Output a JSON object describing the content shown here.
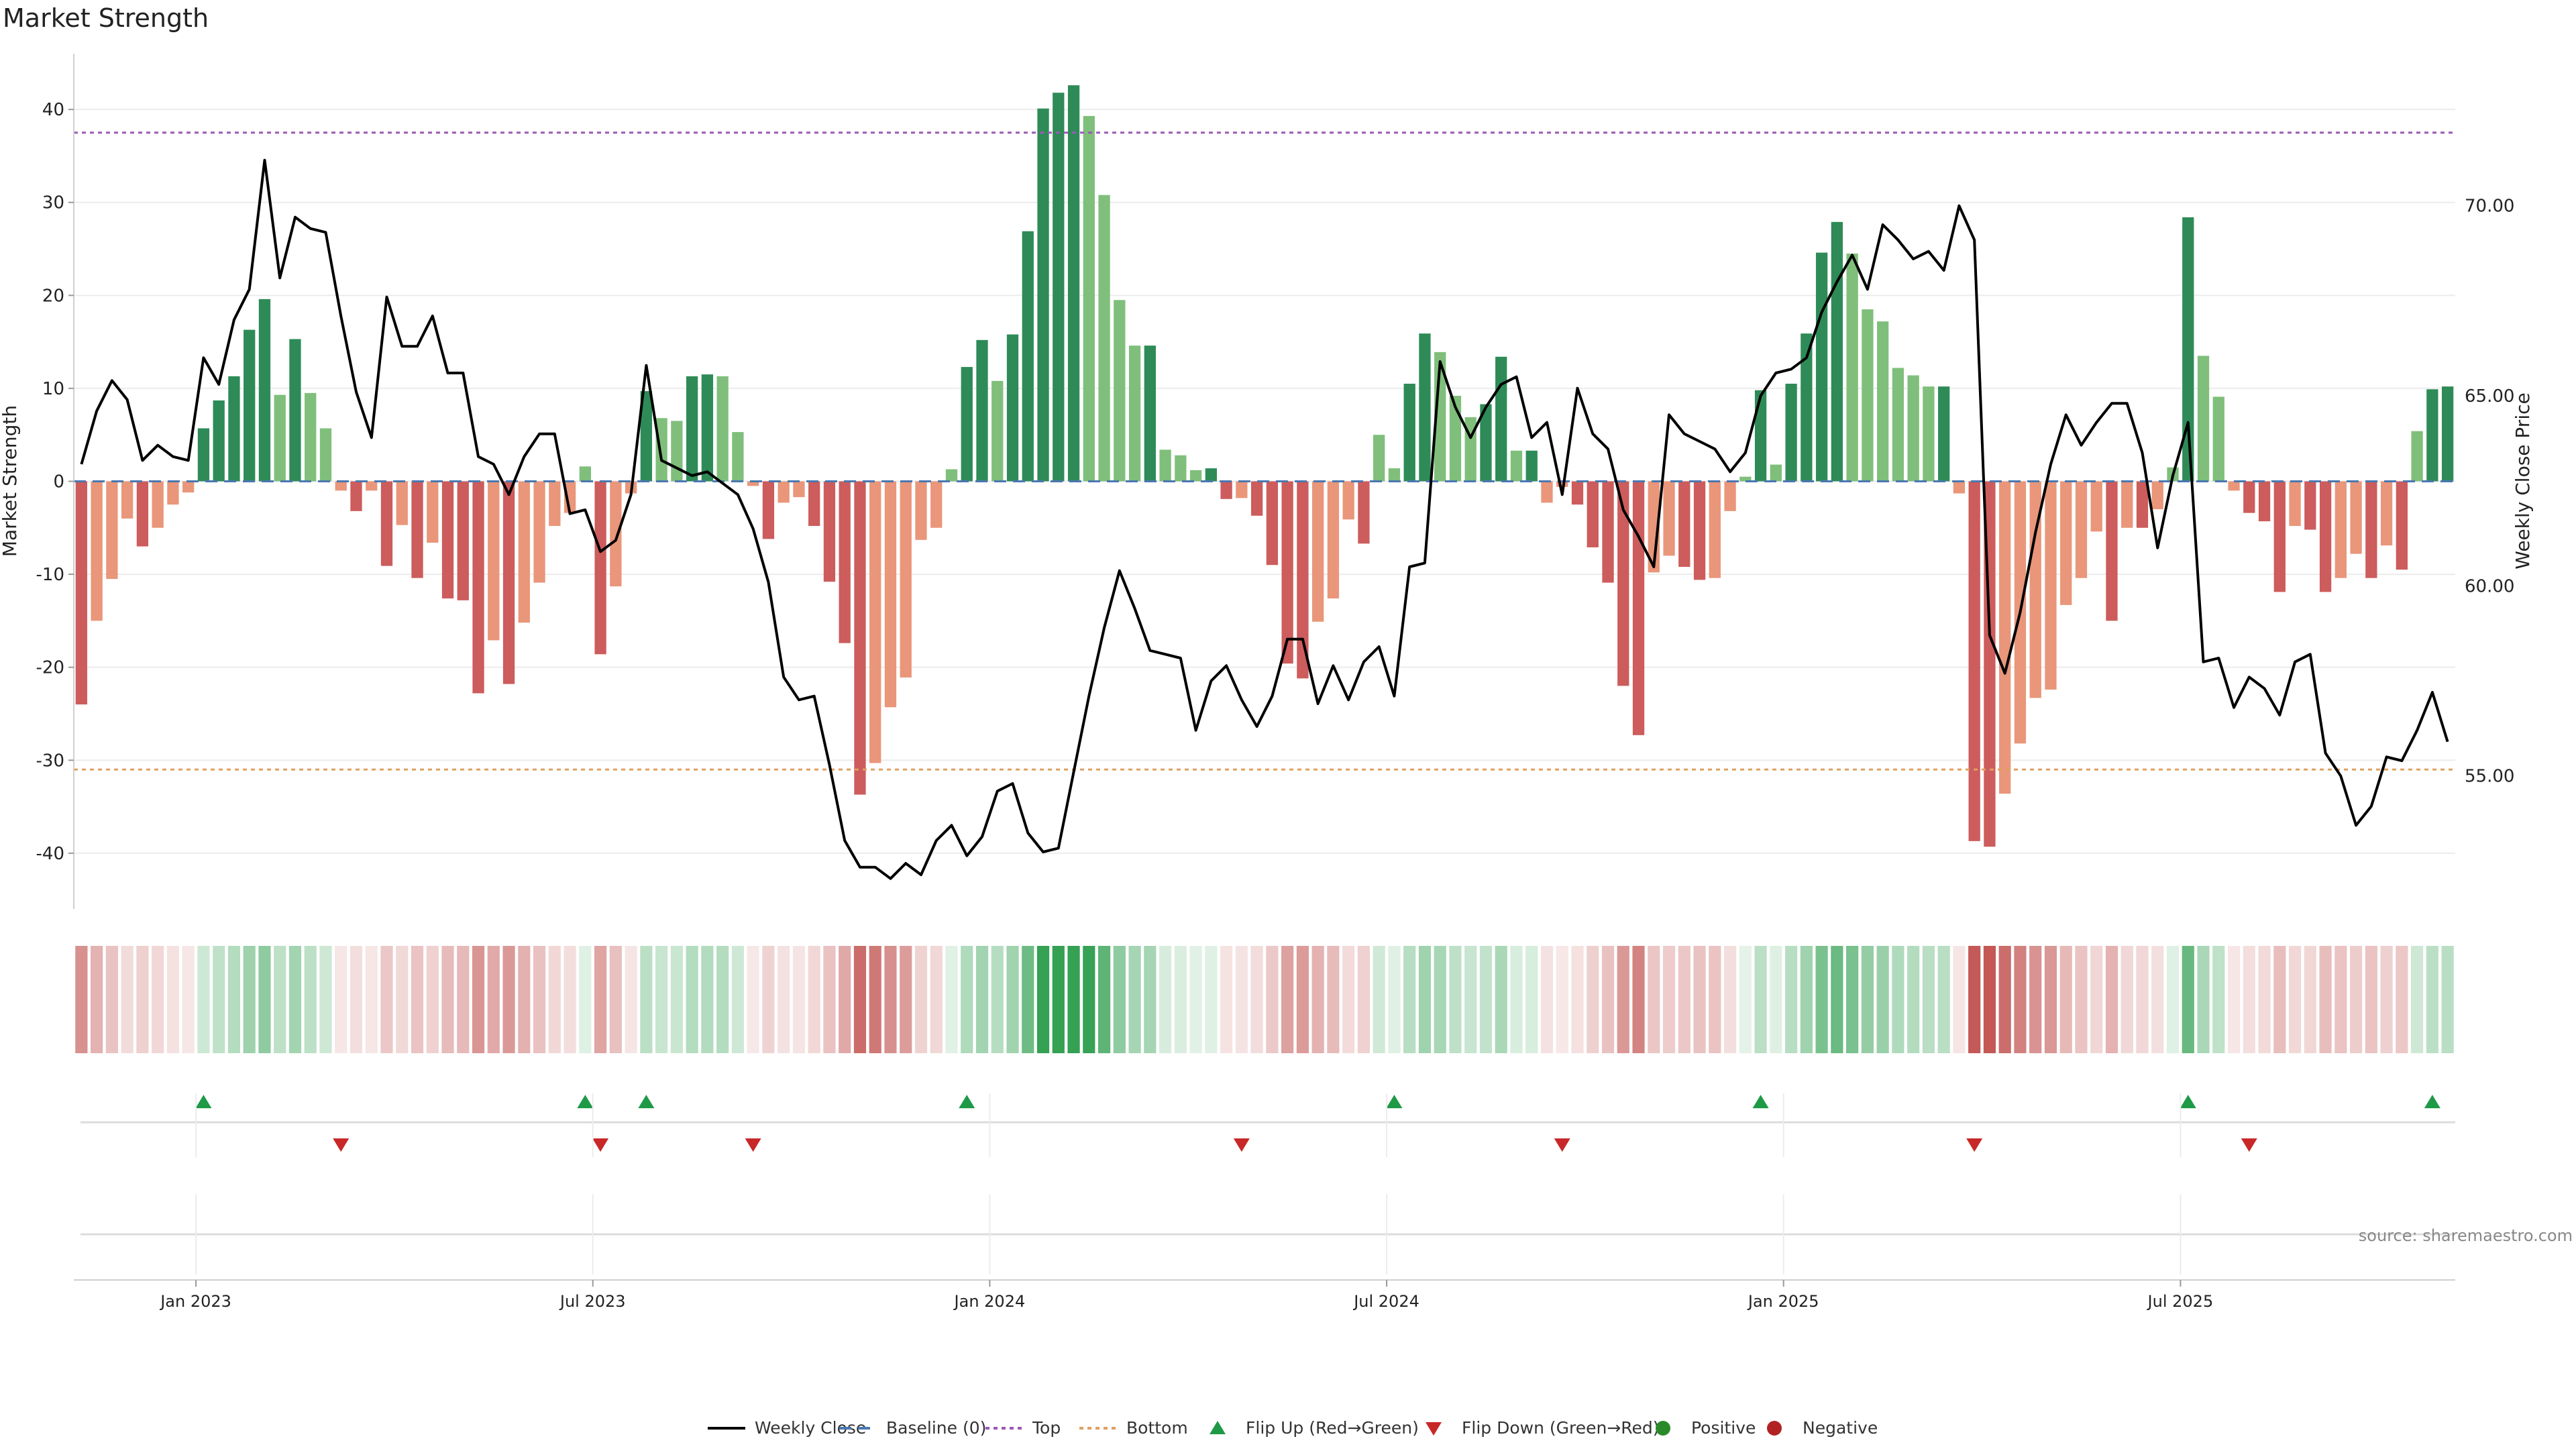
{
  "chart_data": {
    "type": "bar",
    "title": "Market Strength",
    "ylabel_left": "Market Strength",
    "ylabel_right": "Weekly Close Price",
    "ylim_left": [
      -46,
      46
    ],
    "ylim_right": [
      51.5,
      74.0
    ],
    "yticks_left": [
      40,
      30,
      20,
      10,
      0,
      -10,
      -20,
      -30,
      -40
    ],
    "yticks_right": [
      70.0,
      65.0,
      60.0,
      55.0
    ],
    "yticks_right_labels": [
      "70.00",
      "65.00",
      "60.00",
      "55.00"
    ],
    "x_tick_labels": [
      "Jan 2023",
      "Jul 2023",
      "Jan 2024",
      "Jul 2024",
      "Jan 2025",
      "Jul 2025"
    ],
    "x_tick_week_index": [
      8,
      34,
      60,
      86,
      112,
      138
    ],
    "top_threshold": 37.5,
    "bottom_threshold": -31,
    "baseline": 0,
    "grid": true,
    "legend_position": "bottom-center",
    "colors": {
      "strong_green": "#2e8b57",
      "light_green": "#7fbf7b",
      "strong_red": "#cd5c5c",
      "light_red": "#e9967a",
      "close_line": "#000000",
      "baseline": "#4a78b0",
      "top": "#9b59b6",
      "bottom": "#e0a060",
      "flip_up": "#1e9a47",
      "flip_down": "#c82828",
      "positive_dot": "#2a8a2a",
      "negative_dot": "#b22222"
    },
    "strength": [
      -24,
      -15,
      -10.5,
      -4,
      -7,
      -5,
      -2.5,
      -1.2,
      5.7,
      8.7,
      11.3,
      16.3,
      19.6,
      9.3,
      15.3,
      9.5,
      5.7,
      -1,
      -3.2,
      -1,
      -9.1,
      -4.7,
      -10.4,
      -6.6,
      -12.6,
      -12.8,
      -22.8,
      -17.1,
      -21.8,
      -15.2,
      -10.9,
      -4.8,
      -3.4,
      1.6,
      -18.6,
      -11.3,
      -1.3,
      9.7,
      6.8,
      6.5,
      11.3,
      11.5,
      11.3,
      5.3,
      -0.5,
      -6.2,
      -2.3,
      -1.7,
      -4.8,
      -10.8,
      -17.4,
      -33.7,
      -30.3,
      -24.3,
      -21.1,
      -6.3,
      -5,
      1.3,
      12.3,
      15.2,
      10.8,
      15.8,
      26.9,
      40.1,
      41.8,
      42.6,
      39.3,
      30.8,
      19.5,
      14.6,
      14.6,
      3.4,
      2.8,
      1.2,
      1.4,
      -1.9,
      -1.8,
      -3.7,
      -9,
      -19.6,
      -21.2,
      -15.1,
      -12.6,
      -4.1,
      -6.7,
      5,
      1.4,
      10.5,
      15.9,
      13.9,
      9.2,
      6.9,
      8.3,
      13.4,
      3.3,
      3.3,
      -2.3,
      -0.6,
      -2.5,
      -7.1,
      -10.9,
      -22,
      -27.3,
      -9.8,
      -8,
      -9.2,
      -10.6,
      -10.4,
      -3.2,
      0.5,
      9.8,
      1.8,
      10.5,
      15.9,
      24.6,
      27.9,
      24.5,
      18.5,
      17.2,
      12.2,
      11.4,
      10.2,
      10.2,
      -1.3,
      -38.7,
      -39.3,
      -33.6,
      -28.2,
      -23.3,
      -22.4,
      -13.3,
      -10.4,
      -5.4,
      -15,
      -5,
      -5,
      -3,
      1.5,
      28.4,
      13.5,
      9.1,
      -1,
      -3.4,
      -4.3,
      -11.9,
      -4.8,
      -5.2,
      -11.9,
      -10.4,
      -7.8,
      -10.4,
      -6.9,
      -9.5,
      5.4,
      9.9,
      10.2
    ],
    "weekly_close": [
      63.2,
      64.6,
      65.4,
      64.9,
      63.3,
      63.7,
      63.4,
      63.3,
      66.0,
      65.3,
      67.0,
      67.8,
      71.2,
      68.1,
      69.7,
      69.4,
      69.3,
      67.1,
      65.1,
      63.9,
      67.6,
      66.3,
      66.3,
      67.1,
      65.6,
      65.6,
      63.4,
      63.2,
      62.4,
      63.4,
      64.0,
      64.0,
      61.9,
      62.0,
      60.9,
      61.2,
      62.4,
      65.8,
      63.3,
      63.1,
      62.9,
      63.0,
      62.7,
      62.4,
      61.5,
      60.1,
      57.6,
      57.0,
      57.1,
      55.3,
      53.3,
      52.6,
      52.6,
      52.3,
      52.7,
      52.4,
      53.3,
      53.7,
      52.9,
      53.4,
      54.6,
      54.8,
      53.5,
      53.0,
      53.1,
      55.1,
      57.1,
      58.9,
      60.4,
      59.4,
      58.3,
      58.2,
      58.1,
      56.2,
      57.5,
      57.9,
      57.0,
      56.3,
      57.1,
      58.6,
      58.6,
      56.9,
      57.9,
      57.0,
      58.0,
      58.4,
      57.1,
      60.5,
      60.6,
      65.9,
      64.7,
      63.9,
      64.7,
      65.3,
      65.5,
      63.9,
      64.3,
      62.4,
      65.2,
      64.0,
      63.6,
      62.0,
      61.3,
      60.5,
      64.5,
      64.0,
      63.8,
      63.6,
      63.0,
      63.5,
      65.0,
      65.6,
      65.7,
      66.0,
      67.2,
      68.0,
      68.7,
      67.8,
      69.5,
      69.1,
      68.6,
      68.8,
      68.3,
      70.0,
      69.1,
      58.7,
      57.7,
      59.3,
      61.4,
      63.2,
      64.5,
      63.7,
      64.3,
      64.8,
      64.8,
      63.5,
      61.0,
      62.9,
      64.3,
      58.0,
      58.1,
      56.8,
      57.6,
      57.3,
      56.6,
      58.0,
      58.2,
      55.6,
      55.0,
      53.7,
      54.2,
      55.5,
      55.4,
      56.2,
      57.2,
      55.9
    ],
    "flip_up_weeks": [
      8,
      33,
      37,
      58,
      86,
      110,
      138,
      154
    ],
    "flip_down_weeks": [
      17,
      34,
      44,
      76,
      97,
      124,
      142
    ],
    "legend": [
      "Weekly Close",
      "Baseline (0)",
      "Top",
      "Bottom",
      "Flip Up (Red→Green)",
      "Flip Down (Green→Red)",
      "Positive",
      "Negative"
    ]
  },
  "source_text": "source: sharemaestro.com"
}
